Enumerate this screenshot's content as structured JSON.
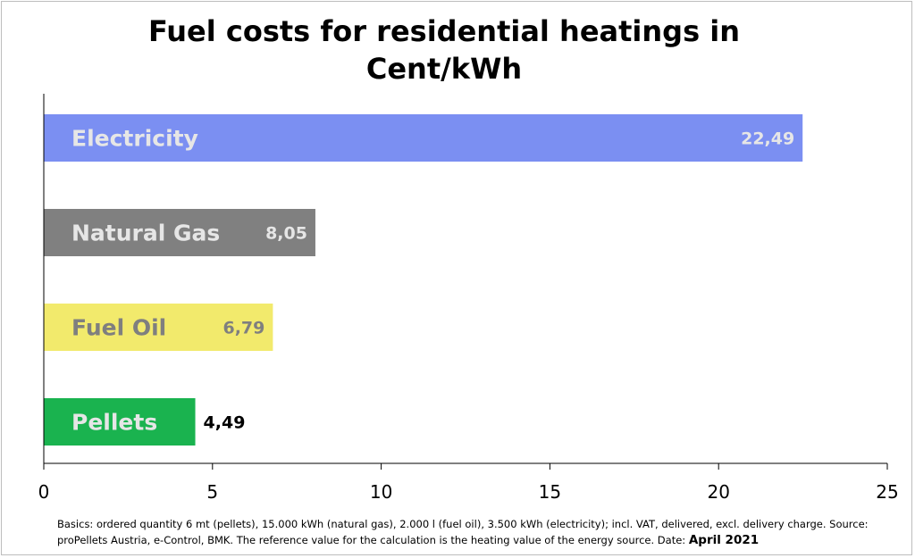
{
  "chart_data": {
    "type": "bar",
    "orientation": "horizontal",
    "title_lines": [
      "Fuel costs for residential heatings in",
      "Cent/kWh"
    ],
    "categories": [
      "Electricity",
      "Natural Gas",
      "Fuel Oil",
      "Pellets"
    ],
    "values": [
      22.49,
      8.05,
      6.79,
      4.49
    ],
    "value_labels": [
      "22,49",
      "8,05",
      "6,79",
      "4,49"
    ],
    "colors": [
      "#7b8ff2",
      "#808080",
      "#f2ea6c",
      "#1ab34f"
    ],
    "label_colors": [
      "#e6e6e6",
      "#e6e6e6",
      "#7f7f7f",
      "#e6e6e6"
    ],
    "value_label_colors": [
      "#e6e6e6",
      "#e6e6e6",
      "#7f7f7f",
      "#000000"
    ],
    "value_label_position": [
      "inside",
      "inside",
      "inside",
      "outside"
    ],
    "xlim": [
      0,
      25
    ],
    "xticks": [
      0,
      5,
      10,
      15,
      20,
      25
    ],
    "xlabel": "",
    "ylabel": "",
    "grid": false,
    "legend": "none"
  },
  "footnote": {
    "text": "Basics: ordered quantity 6 mt (pellets), 15.000 kWh (natural gas), 2.000 l (fuel oil), 3.500 kWh (electricity); incl. VAT, delivered, excl. delivery charge. Source: proPellets Austria, e-Control, BMK. The reference value for the calculation is the heating value of the energy source. Date: ",
    "date": "April 2021"
  }
}
